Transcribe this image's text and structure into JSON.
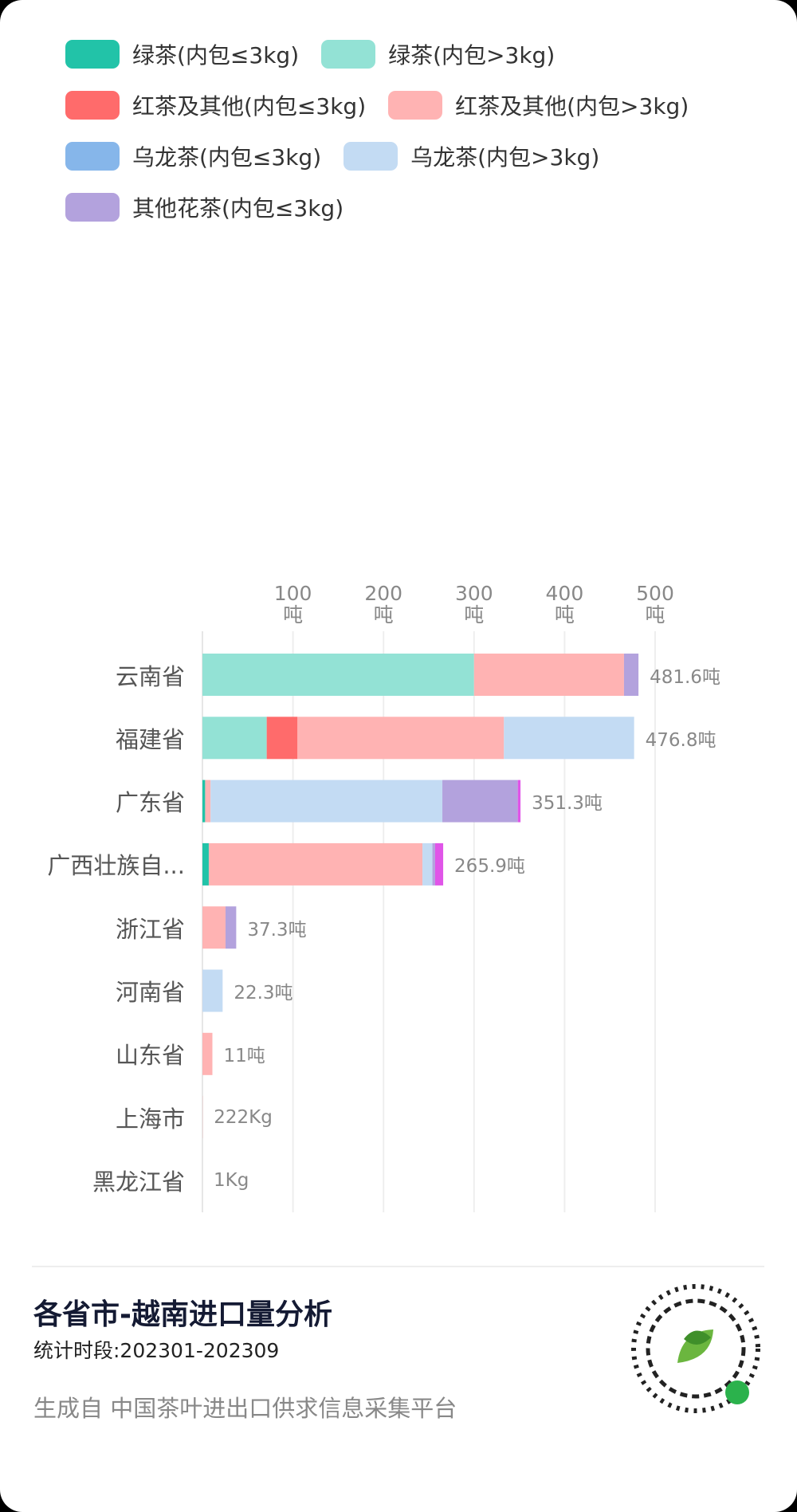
{
  "chart_data": {
    "type": "stacked-barh",
    "categories": [
      "云南省",
      "福建省",
      "广东省",
      "广西壮族自...",
      "浙江省",
      "河南省",
      "山东省",
      "上海市",
      "黑龙江省"
    ],
    "series": [
      {
        "name": "绿茶(内包≤3kg)",
        "color": "#22c3a8",
        "values": [
          0,
          0,
          3,
          7,
          0,
          0,
          0,
          0,
          0
        ]
      },
      {
        "name": "绿茶(内包>3kg)",
        "color": "#93e2d5",
        "values": [
          300,
          71,
          0,
          0,
          0,
          0,
          0,
          0,
          0
        ]
      },
      {
        "name": "红茶及其他(内包≤3kg)",
        "color": "#ff6b6b",
        "values": [
          0,
          34,
          0,
          0,
          0,
          0,
          0,
          0,
          0
        ]
      },
      {
        "name": "红茶及其他(内包>3kg)",
        "color": "#ffb3b3",
        "values": [
          165.6,
          228,
          6,
          236,
          25.5,
          0,
          11,
          0.222,
          0
        ]
      },
      {
        "name": "乌龙茶(内包≤3kg)",
        "color": "#86b6ea",
        "values": [
          0,
          0,
          0,
          0,
          0,
          0,
          0,
          0,
          0
        ]
      },
      {
        "name": "乌龙茶(内包>3kg)",
        "color": "#c3dbf3",
        "values": [
          0,
          143.8,
          256,
          11,
          0,
          22.3,
          0,
          0,
          0.001
        ]
      },
      {
        "name": "其他花茶(内包≤3kg)",
        "color": "#b3a2dd",
        "values": [
          16,
          0,
          83.3,
          3,
          11.8,
          0,
          0,
          0,
          0
        ]
      },
      {
        "color": "#e055e8",
        "values": [
          0,
          0,
          3,
          8.9,
          0,
          0,
          0,
          0,
          0
        ]
      }
    ],
    "totals": [
      481.6,
      476.8,
      351.3,
      265.9,
      37.3,
      22.3,
      11,
      0.222,
      0.001
    ],
    "total_labels": [
      "481.6吨",
      "476.8吨",
      "351.3吨",
      "265.9吨",
      "37.3吨",
      "22.3吨",
      "11吨",
      "222Kg",
      "1Kg"
    ],
    "xlim": [
      0,
      500
    ],
    "xticks": [
      {
        "value": 100,
        "label": "100吨"
      },
      {
        "value": 200,
        "label": "200吨"
      },
      {
        "value": 300,
        "label": "300吨"
      },
      {
        "value": 400,
        "label": "400吨"
      },
      {
        "value": 500,
        "label": "500吨"
      }
    ],
    "grid": true
  },
  "footer": {
    "title": "各省市-越南进口量分析",
    "period": "统计时段:202301-202309",
    "source": "生成自 中国茶叶进出口供求信息采集平台"
  }
}
